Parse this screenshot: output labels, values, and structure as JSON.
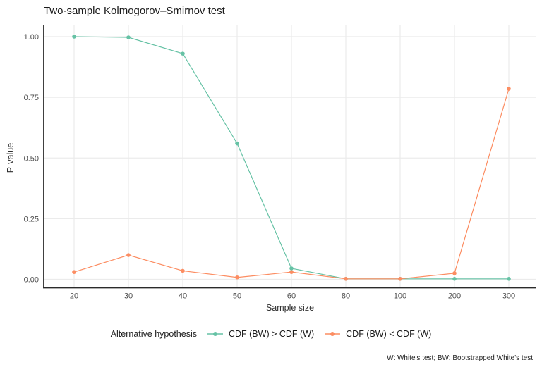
{
  "title": "Two-sample Kolmogorov–Smirnov test",
  "caption": "W: White's test; BW: Bootstrapped White's test",
  "legend": {
    "title": "Alternative hypothesis",
    "items": [
      {
        "label": "CDF (BW) > CDF (W)",
        "color": "#66C2A5"
      },
      {
        "label": "CDF (BW) < CDF (W)",
        "color": "#FC8D62"
      }
    ]
  },
  "colors": {
    "green_series": "#66C2A5",
    "orange_series": "#FC8D62",
    "gridline": "#ebebeb",
    "axis_line": "#2b2b2b",
    "tick_label": "#4d4d4d",
    "background": "#ffffff"
  },
  "chart_data": {
    "type": "line",
    "title": "Two-sample Kolmogorov–Smirnov test",
    "xlabel": "Sample size",
    "ylabel": "P-value",
    "x_scale": "discrete (evenly spaced categories)",
    "categories": [
      "20",
      "30",
      "40",
      "50",
      "60",
      "80",
      "100",
      "200",
      "300"
    ],
    "yticks": [
      0.0,
      0.25,
      0.5,
      0.75,
      1.0
    ],
    "ytick_labels": [
      "0.00",
      "0.25",
      "0.50",
      "0.75",
      "1.00"
    ],
    "ylim": [
      0,
      1
    ],
    "grid": "major gridlines only, light gray on white; black left and bottom axis lines",
    "legend_position": "bottom",
    "marker": "filled circle, radius ~2.8px, on 1px line",
    "series": [
      {
        "name": "CDF (BW) > CDF (W)",
        "color": "#66C2A5",
        "values": [
          1.0,
          0.997,
          0.93,
          0.56,
          0.045,
          0.002,
          0.002,
          0.002,
          0.002
        ]
      },
      {
        "name": "CDF (BW) < CDF (W)",
        "color": "#FC8D62",
        "values": [
          0.03,
          0.1,
          0.035,
          0.008,
          0.03,
          0.002,
          0.002,
          0.025,
          0.785
        ]
      }
    ]
  }
}
